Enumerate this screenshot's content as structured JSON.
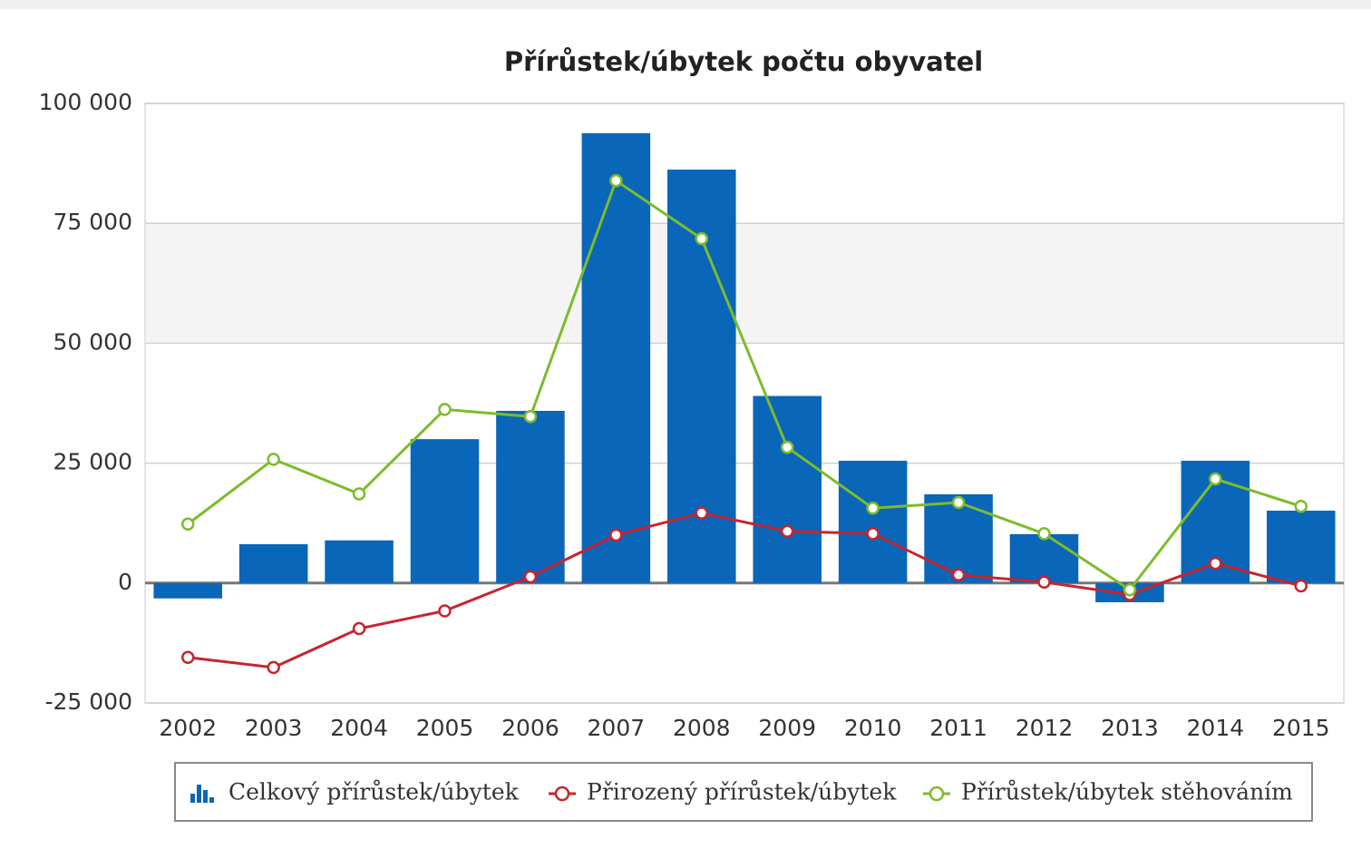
{
  "chart_data": {
    "type": "bar",
    "title": "Přírůstek/úbytek počtu obyvatel",
    "categories": [
      "2002",
      "2003",
      "2004",
      "2005",
      "2006",
      "2007",
      "2008",
      "2009",
      "2010",
      "2011",
      "2012",
      "2013",
      "2014",
      "2015"
    ],
    "series": [
      {
        "name": "Celkový přírůstek/úbytek",
        "type": "bar",
        "color": "#0a66b8",
        "values": [
          -3200,
          8100,
          8900,
          30000,
          35900,
          93800,
          86200,
          39000,
          25500,
          18500,
          10200,
          -4000,
          25500,
          15100
        ]
      },
      {
        "name": "Přirozený přírůstek/úbytek",
        "type": "line",
        "color": "#c8242e",
        "values": [
          -15500,
          -17600,
          -9500,
          -5800,
          1300,
          10000,
          14600,
          10800,
          10300,
          1700,
          200,
          -2400,
          4100,
          -600
        ]
      },
      {
        "name": "Přírůstek/úbytek stěhováním",
        "type": "line",
        "color": "#7cbc2c",
        "values": [
          12300,
          25800,
          18600,
          36200,
          34700,
          83900,
          71800,
          28300,
          15600,
          16800,
          10300,
          -1400,
          21700,
          16000
        ]
      }
    ],
    "ylim": [
      -25000,
      100000
    ],
    "yticks": [
      {
        "value": -25000,
        "label": "-25 000"
      },
      0,
      {
        "value": 25000,
        "label": "25 000"
      },
      {
        "value": 50000,
        "label": "50 000"
      },
      {
        "value": 75000,
        "label": "75 000"
      },
      {
        "value": 100000,
        "label": "100 000"
      }
    ],
    "grid": true
  }
}
